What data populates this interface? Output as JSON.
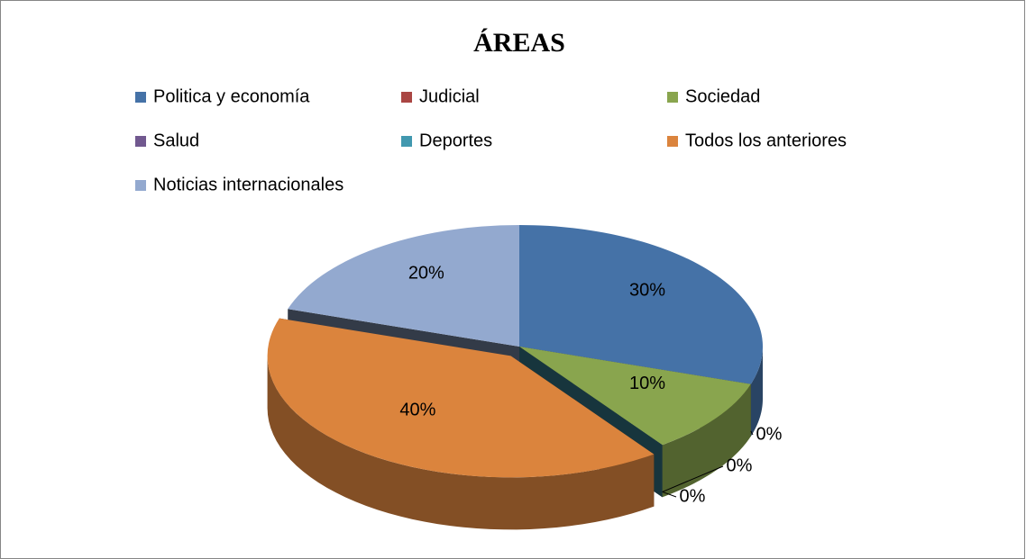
{
  "chart_data": {
    "type": "pie",
    "title": "ÁREAS",
    "categories": [
      "Politica y economía",
      "Judicial",
      "Sociedad",
      "Salud",
      "Deportes",
      "Todos los anteriores",
      "Noticias internacionales"
    ],
    "values": [
      30,
      0,
      10,
      0,
      0,
      40,
      20
    ],
    "value_labels": [
      "30%",
      "0%",
      "10%",
      "0%",
      "0%",
      "40%",
      "20%"
    ],
    "colors": [
      "#4572a7",
      "#aa4643",
      "#89a54e",
      "#71588f",
      "#4198af",
      "#db843d",
      "#93a9cf"
    ],
    "legend": "top"
  }
}
